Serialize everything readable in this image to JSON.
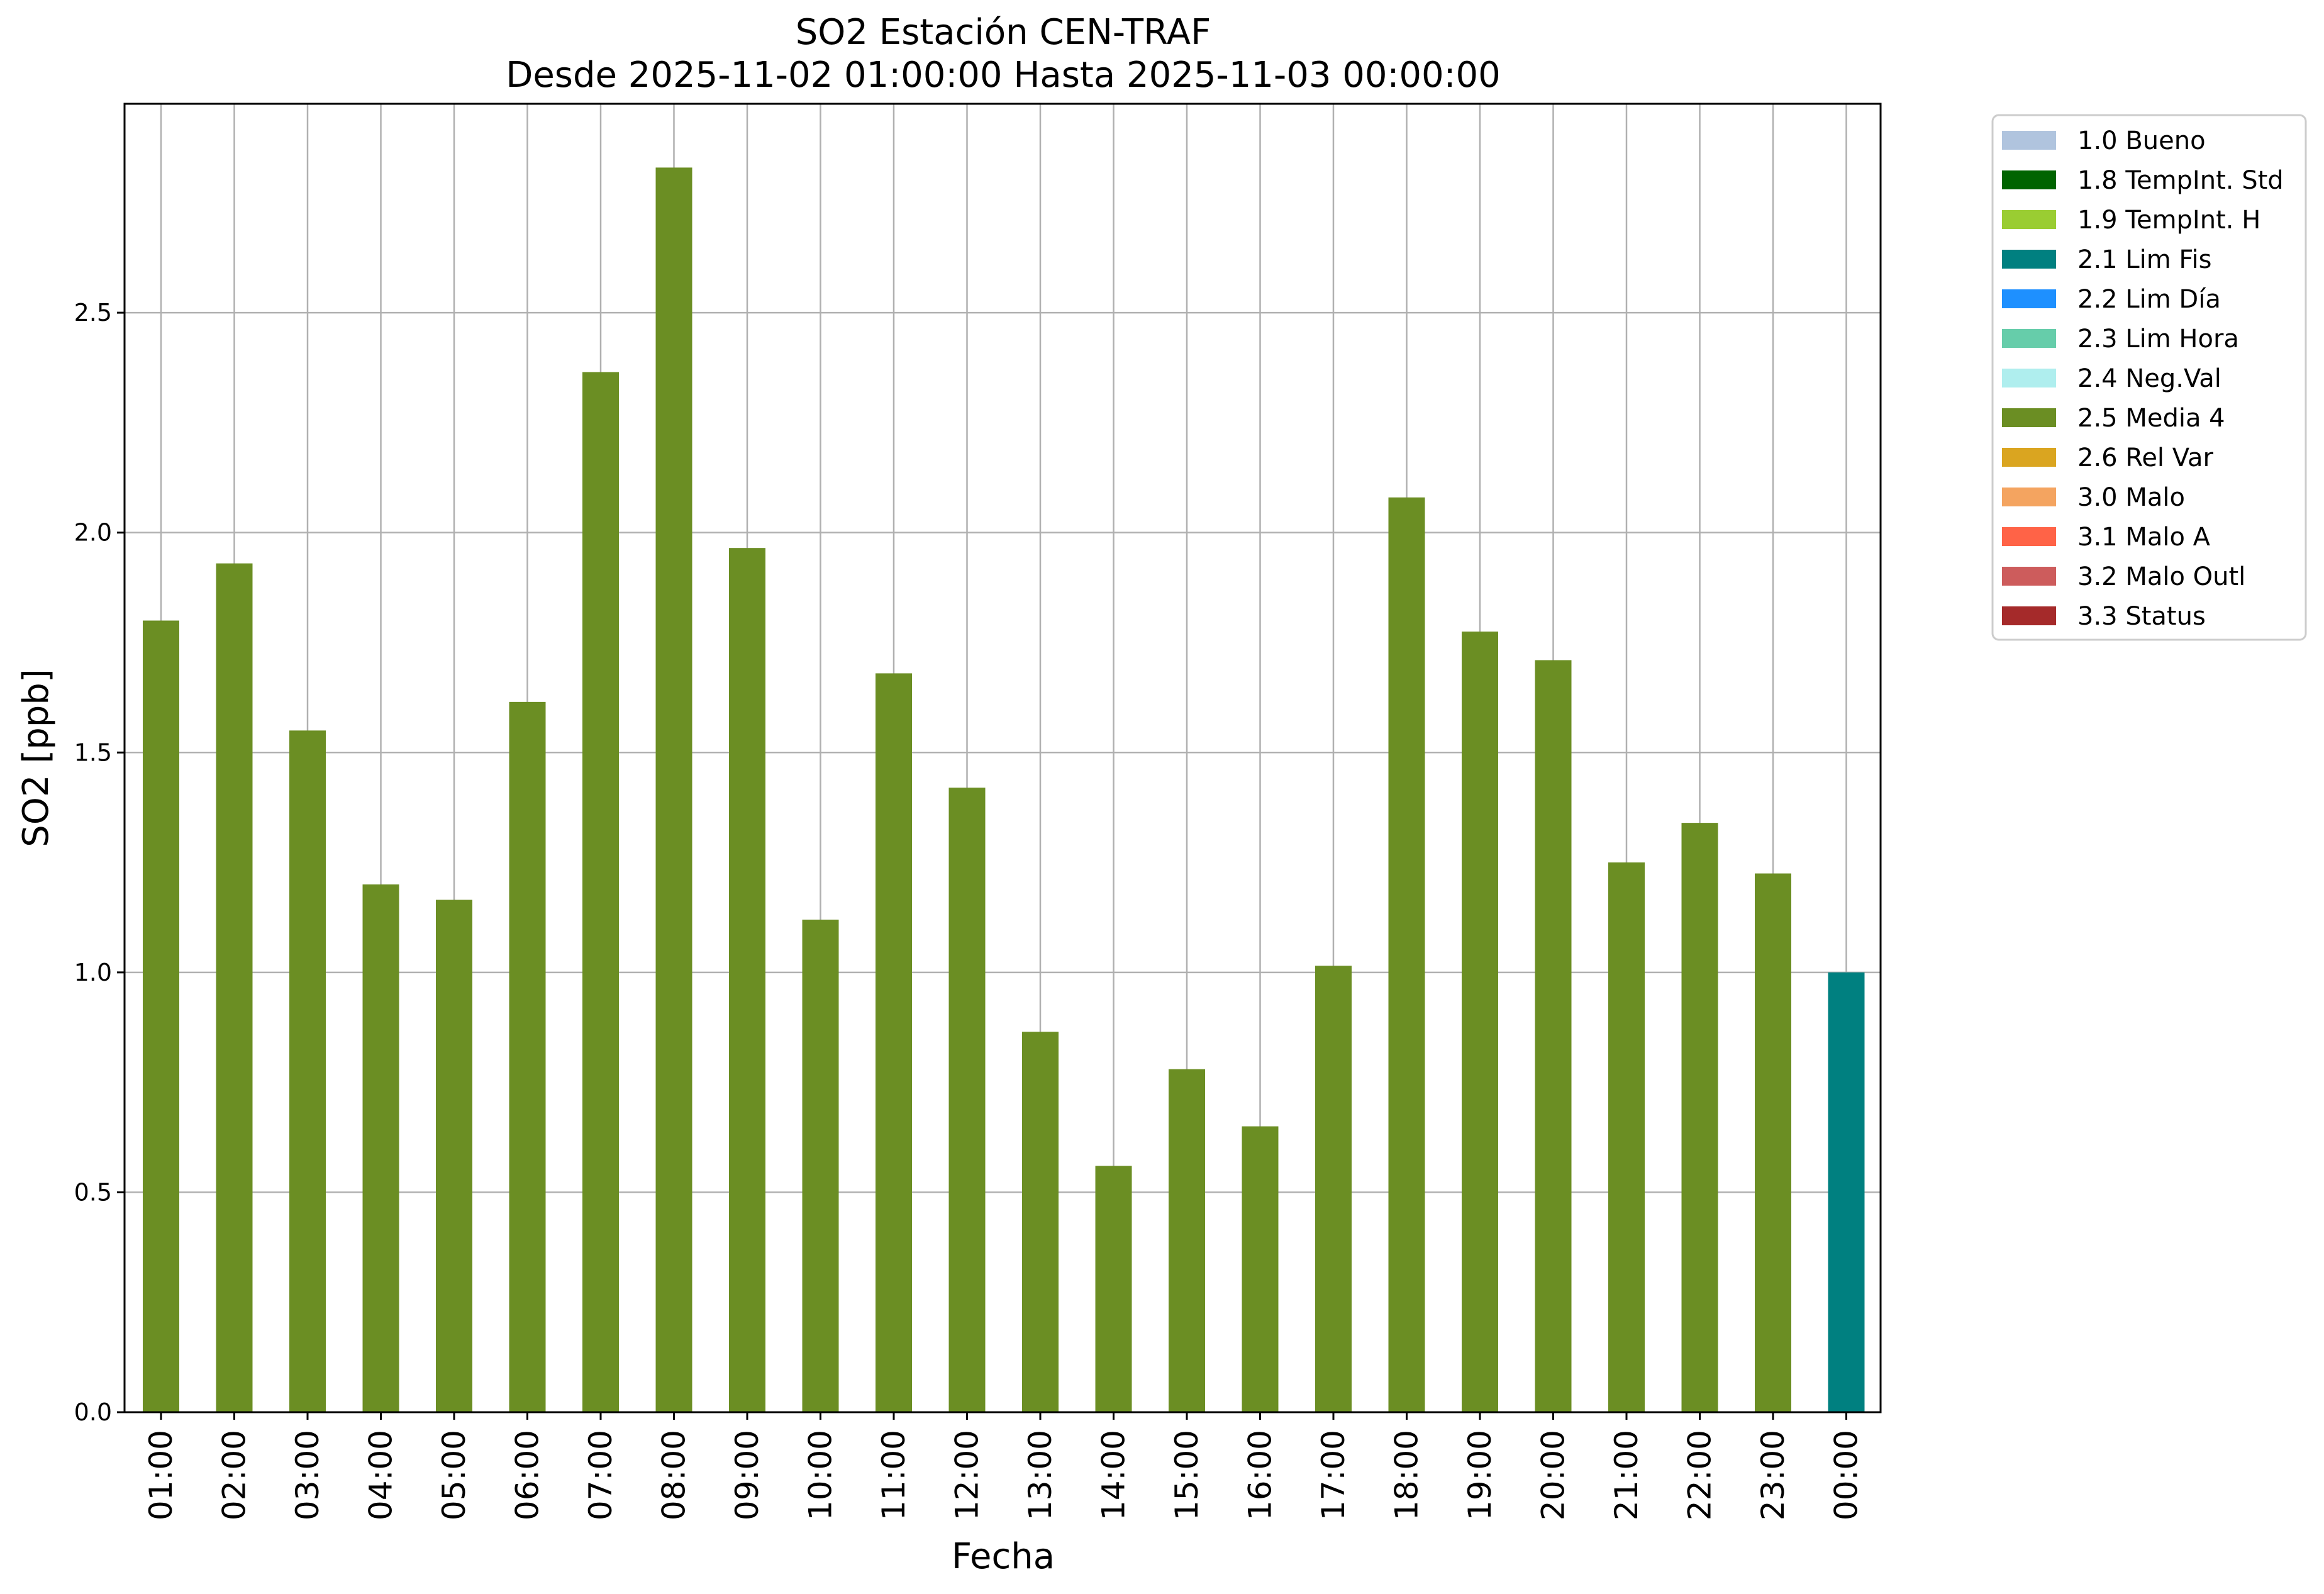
{
  "chart_data": {
    "type": "bar",
    "title": "SO2 Estación CEN-TRAF",
    "subtitle": "Desde 2025-11-02 01:00:00 Hasta 2025-11-03 00:00:00",
    "xlabel": "Fecha",
    "ylabel": "SO2 [ppb]",
    "ylim": [
      0,
      2.975
    ],
    "yticks": [
      "0.0",
      "0.5",
      "1.0",
      "1.5",
      "2.0",
      "2.5"
    ],
    "grid": true,
    "legend_position": "outside-right-top",
    "categories": [
      "01:00",
      "02:00",
      "03:00",
      "04:00",
      "05:00",
      "06:00",
      "07:00",
      "08:00",
      "09:00",
      "10:00",
      "11:00",
      "12:00",
      "13:00",
      "14:00",
      "15:00",
      "16:00",
      "17:00",
      "18:00",
      "19:00",
      "20:00",
      "21:00",
      "22:00",
      "23:00",
      "00:00"
    ],
    "values": [
      1.8,
      1.93,
      1.55,
      1.2,
      1.165,
      1.615,
      2.365,
      2.83,
      1.965,
      1.12,
      1.68,
      1.42,
      0.865,
      0.56,
      0.78,
      0.65,
      1.015,
      2.08,
      1.775,
      1.71,
      1.25,
      1.34,
      1.225,
      1.0
    ],
    "bar_flags": [
      "2.5 Media 4",
      "2.5 Media 4",
      "2.5 Media 4",
      "2.5 Media 4",
      "2.5 Media 4",
      "2.5 Media 4",
      "2.5 Media 4",
      "2.5 Media 4",
      "2.5 Media 4",
      "2.5 Media 4",
      "2.5 Media 4",
      "2.5 Media 4",
      "2.5 Media 4",
      "2.5 Media 4",
      "2.5 Media 4",
      "2.5 Media 4",
      "2.5 Media 4",
      "2.5 Media 4",
      "2.5 Media 4",
      "2.5 Media 4",
      "2.5 Media 4",
      "2.5 Media 4",
      "2.5 Media 4",
      "2.1 Lim Fis"
    ],
    "legend": [
      {
        "label": "1.0 Bueno",
        "color": "#b0c4de"
      },
      {
        "label": "1.8 TempInt. Std",
        "color": "#006400"
      },
      {
        "label": "1.9 TempInt. H",
        "color": "#9acd32"
      },
      {
        "label": "2.1 Lim Fis",
        "color": "#008080"
      },
      {
        "label": "2.2 Lim Día",
        "color": "#1e90ff"
      },
      {
        "label": "2.3 Lim Hora",
        "color": "#66cdaa"
      },
      {
        "label": "2.4 Neg.Val",
        "color": "#afeeee"
      },
      {
        "label": "2.5 Media 4",
        "color": "#6b8e23"
      },
      {
        "label": "2.6 Rel Var",
        "color": "#daa520"
      },
      {
        "label": "3.0 Malo",
        "color": "#f4a460"
      },
      {
        "label": "3.1 Malo A",
        "color": "#ff6347"
      },
      {
        "label": "3.2 Malo Outl",
        "color": "#cd5c5c"
      },
      {
        "label": "3.3 Status",
        "color": "#a52a2a"
      }
    ]
  }
}
